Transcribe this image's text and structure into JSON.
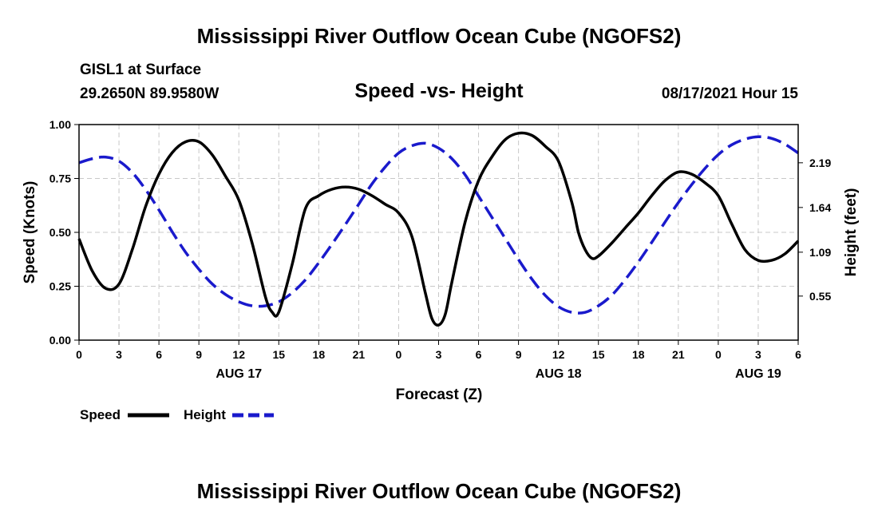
{
  "header": {
    "title": "Mississippi River Outflow Ocean Cube (NGOFS2)",
    "station": "GISL1 at Surface",
    "location": "29.2650N  89.9580W",
    "subtitle": "Speed -vs- Height",
    "timestamp": "08/17/2021 Hour 15"
  },
  "footer": {
    "title": "Mississippi River Outflow Ocean Cube (NGOFS2)"
  },
  "chart_data": {
    "type": "line",
    "title": "Speed -vs- Height",
    "xlabel": "Forecast (Z)",
    "ylabel": "Speed (Knots)",
    "y2label": "Height (feet)",
    "xlim": [
      0,
      54
    ],
    "ylim": [
      0,
      1
    ],
    "y2lim": [
      0.008,
      2.66
    ],
    "x_tick_values": [
      0,
      3,
      6,
      9,
      12,
      15,
      18,
      21,
      24,
      27,
      30,
      33,
      36,
      39,
      42,
      45,
      48,
      51,
      54
    ],
    "x_tick_labels": [
      "0",
      "3",
      "6",
      "9",
      "12",
      "15",
      "18",
      "21",
      "0",
      "3",
      "6",
      "9",
      "12",
      "15",
      "18",
      "21",
      "0",
      "3",
      "6"
    ],
    "y_tick_values": [
      0,
      0.25,
      0.5,
      0.75,
      1.0
    ],
    "y_tick_labels": [
      "0.00",
      "0.25",
      "0.50",
      "0.75",
      "1.00"
    ],
    "y2_tick_values": [
      0.55,
      1.09,
      1.64,
      2.19
    ],
    "y2_tick_labels": [
      "0.55",
      "1.09",
      "1.64",
      "2.19"
    ],
    "date_labels": [
      {
        "x": 12,
        "label": "AUG 17"
      },
      {
        "x": 36,
        "label": "AUG 18"
      },
      {
        "x": 51,
        "label": "AUG 19"
      }
    ],
    "grid": true,
    "legend_position": "bottom-left",
    "series": [
      {
        "name": "Speed",
        "axis": "left",
        "color": "#000000",
        "style": "solid",
        "x": [
          0,
          1,
          2,
          3,
          4,
          5,
          6,
          7,
          8,
          9,
          10,
          11,
          12,
          13,
          14,
          14.5,
          15,
          16,
          17,
          18,
          19,
          20,
          21,
          22,
          23,
          24,
          25,
          26,
          26.5,
          27,
          27.5,
          28,
          29,
          30,
          31,
          32,
          33,
          34,
          35,
          36,
          37,
          37.5,
          38,
          38.5,
          39,
          40,
          41,
          42,
          43,
          44,
          45,
          46,
          47,
          48,
          49,
          50,
          51,
          52,
          53,
          54
        ],
        "values": [
          0.47,
          0.32,
          0.24,
          0.26,
          0.42,
          0.62,
          0.77,
          0.87,
          0.92,
          0.92,
          0.86,
          0.76,
          0.65,
          0.45,
          0.2,
          0.13,
          0.13,
          0.35,
          0.61,
          0.67,
          0.7,
          0.71,
          0.7,
          0.67,
          0.63,
          0.59,
          0.48,
          0.22,
          0.1,
          0.07,
          0.12,
          0.27,
          0.55,
          0.74,
          0.85,
          0.93,
          0.96,
          0.95,
          0.9,
          0.83,
          0.64,
          0.5,
          0.42,
          0.38,
          0.39,
          0.45,
          0.52,
          0.59,
          0.67,
          0.74,
          0.78,
          0.77,
          0.73,
          0.67,
          0.54,
          0.42,
          0.37,
          0.37,
          0.4,
          0.46
        ]
      },
      {
        "name": "Height",
        "axis": "right",
        "color": "#1a1acc",
        "style": "dashed",
        "x": [
          0,
          1,
          2,
          3,
          4,
          5,
          6,
          7,
          8,
          9,
          10,
          11,
          12,
          13,
          14,
          15,
          16,
          17,
          18,
          19,
          20,
          21,
          22,
          23,
          24,
          25,
          26,
          27,
          28,
          29,
          30,
          31,
          32,
          33,
          34,
          35,
          36,
          37,
          38,
          39,
          40,
          41,
          42,
          43,
          44,
          45,
          46,
          47,
          48,
          49,
          50,
          51,
          52,
          53,
          54
        ],
        "values": [
          2.19,
          2.24,
          2.26,
          2.21,
          2.07,
          1.86,
          1.61,
          1.34,
          1.09,
          0.88,
          0.7,
          0.57,
          0.48,
          0.43,
          0.43,
          0.48,
          0.59,
          0.75,
          0.96,
          1.19,
          1.43,
          1.68,
          1.93,
          2.14,
          2.31,
          2.4,
          2.43,
          2.37,
          2.24,
          2.04,
          1.78,
          1.52,
          1.26,
          1.0,
          0.76,
          0.56,
          0.42,
          0.35,
          0.35,
          0.43,
          0.56,
          0.75,
          0.97,
          1.21,
          1.46,
          1.7,
          1.92,
          2.12,
          2.29,
          2.41,
          2.48,
          2.51,
          2.49,
          2.42,
          2.31
        ]
      }
    ]
  }
}
